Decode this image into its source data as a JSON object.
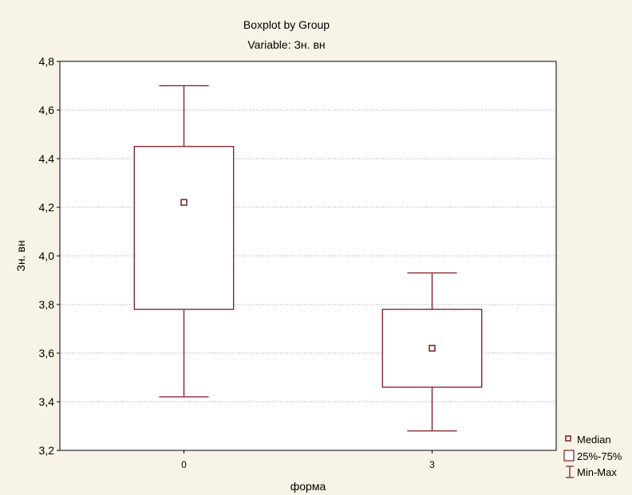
{
  "chart_data": {
    "type": "boxplot",
    "title": "Boxplot by Group",
    "subtitle": "Variable: Зн. вн",
    "xlabel": "форма",
    "ylabel": "Зн. вн",
    "ylim": [
      3.2,
      4.8
    ],
    "yticks": [
      3.2,
      3.4,
      3.6,
      3.8,
      4.0,
      4.2,
      4.4,
      4.6,
      4.8
    ],
    "ytick_labels": [
      "3,2",
      "3,4",
      "3,6",
      "3,8",
      "4,0",
      "4,2",
      "4,4",
      "4,6",
      "4,8"
    ],
    "categories": [
      "0",
      "3"
    ],
    "groups": [
      {
        "category": "0",
        "min": 3.42,
        "q1": 3.78,
        "median": 4.22,
        "q3": 4.45,
        "max": 4.7
      },
      {
        "category": "3",
        "min": 3.28,
        "q1": 3.46,
        "median": 3.62,
        "q3": 3.78,
        "max": 3.93
      }
    ],
    "grid": true,
    "legend_position": "bottom-right",
    "legend": [
      "Median",
      "25%-75%",
      "Min-Max"
    ],
    "colors": {
      "box": "#7b1a22",
      "background": "#f7f3e6",
      "plot_area": "#ffffff",
      "grid": "#a0a0a0"
    }
  }
}
